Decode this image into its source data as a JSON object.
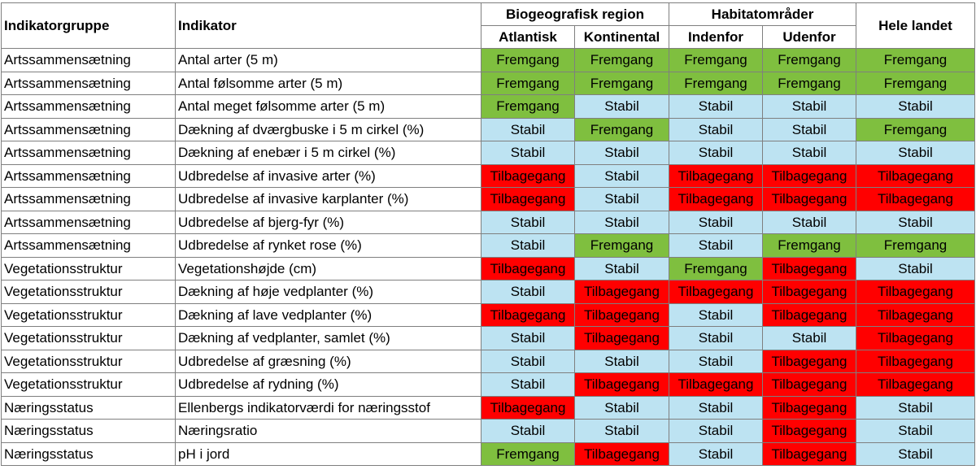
{
  "colors": {
    "Fremgang": "#7fbf3f",
    "Stabil": "#bde3f2",
    "Tilbagegang": "#ff0000"
  },
  "header": {
    "group": "Indikatorgruppe",
    "indicator": "Indikator",
    "biogeo": "Biogeografisk region",
    "atlantic": "Atlantisk",
    "continental": "Kontinental",
    "habitat": "Habitatområder",
    "inside": "Indenfor",
    "outside": "Udenfor",
    "country": "Hele landet"
  },
  "rows": [
    {
      "group": "Artssammensætning",
      "indicator": "Antal arter (5 m)",
      "values": [
        "Fremgang",
        "Fremgang",
        "Fremgang",
        "Fremgang",
        "Fremgang"
      ]
    },
    {
      "group": "Artssammensætning",
      "indicator": "Antal følsomme arter (5 m)",
      "values": [
        "Fremgang",
        "Fremgang",
        "Fremgang",
        "Fremgang",
        "Fremgang"
      ]
    },
    {
      "group": "Artssammensætning",
      "indicator": "Antal meget følsomme arter (5 m)",
      "values": [
        "Fremgang",
        "Stabil",
        "Stabil",
        "Stabil",
        "Stabil"
      ]
    },
    {
      "group": "Artssammensætning",
      "indicator": "Dækning af dværgbuske i 5 m cirkel (%)",
      "values": [
        "Stabil",
        "Fremgang",
        "Stabil",
        "Stabil",
        "Fremgang"
      ]
    },
    {
      "group": "Artssammensætning",
      "indicator": "Dækning af enebær i 5 m cirkel (%)",
      "values": [
        "Stabil",
        "Stabil",
        "Stabil",
        "Stabil",
        "Stabil"
      ]
    },
    {
      "group": "Artssammensætning",
      "indicator": "Udbredelse af invasive arter (%)",
      "values": [
        "Tilbagegang",
        "Stabil",
        "Tilbagegang",
        "Tilbagegang",
        "Tilbagegang"
      ]
    },
    {
      "group": "Artssammensætning",
      "indicator": "Udbredelse af invasive karplanter (%)",
      "values": [
        "Tilbagegang",
        "Stabil",
        "Tilbagegang",
        "Tilbagegang",
        "Tilbagegang"
      ]
    },
    {
      "group": "Artssammensætning",
      "indicator": "Udbredelse af bjerg-fyr (%)",
      "values": [
        "Stabil",
        "Stabil",
        "Stabil",
        "Stabil",
        "Stabil"
      ]
    },
    {
      "group": "Artssammensætning",
      "indicator": "Udbredelse af rynket rose (%)",
      "values": [
        "Stabil",
        "Fremgang",
        "Stabil",
        "Fremgang",
        "Fremgang"
      ]
    },
    {
      "group": "Vegetationsstruktur",
      "indicator": "Vegetationshøjde (cm)",
      "values": [
        "Tilbagegang",
        "Stabil",
        "Fremgang",
        "Tilbagegang",
        "Stabil"
      ]
    },
    {
      "group": "Vegetationsstruktur",
      "indicator": "Dækning af høje vedplanter (%)",
      "values": [
        "Stabil",
        "Tilbagegang",
        "Tilbagegang",
        "Tilbagegang",
        "Tilbagegang"
      ]
    },
    {
      "group": "Vegetationsstruktur",
      "indicator": "Dækning af lave vedplanter (%)",
      "values": [
        "Tilbagegang",
        "Tilbagegang",
        "Stabil",
        "Tilbagegang",
        "Tilbagegang"
      ]
    },
    {
      "group": "Vegetationsstruktur",
      "indicator": "Dækning af vedplanter, samlet (%)",
      "values": [
        "Stabil",
        "Tilbagegang",
        "Stabil",
        "Stabil",
        "Tilbagegang"
      ]
    },
    {
      "group": "Vegetationsstruktur",
      "indicator": "Udbredelse af græsning (%)",
      "values": [
        "Stabil",
        "Stabil",
        "Stabil",
        "Tilbagegang",
        "Tilbagegang"
      ]
    },
    {
      "group": "Vegetationsstruktur",
      "indicator": "Udbredelse af rydning (%)",
      "values": [
        "Stabil",
        "Tilbagegang",
        "Tilbagegang",
        "Tilbagegang",
        "Tilbagegang"
      ]
    },
    {
      "group": "Næringsstatus",
      "indicator": "Ellenbergs indikatorværdi for næringsstof",
      "values": [
        "Tilbagegang",
        "Stabil",
        "Stabil",
        "Tilbagegang",
        "Stabil"
      ]
    },
    {
      "group": "Næringsstatus",
      "indicator": "Næringsratio",
      "values": [
        "Stabil",
        "Stabil",
        "Stabil",
        "Tilbagegang",
        "Stabil"
      ]
    },
    {
      "group": "Næringsstatus",
      "indicator": "pH i jord",
      "values": [
        "Fremgang",
        "Tilbagegang",
        "Stabil",
        "Tilbagegang",
        "Stabil"
      ]
    }
  ]
}
